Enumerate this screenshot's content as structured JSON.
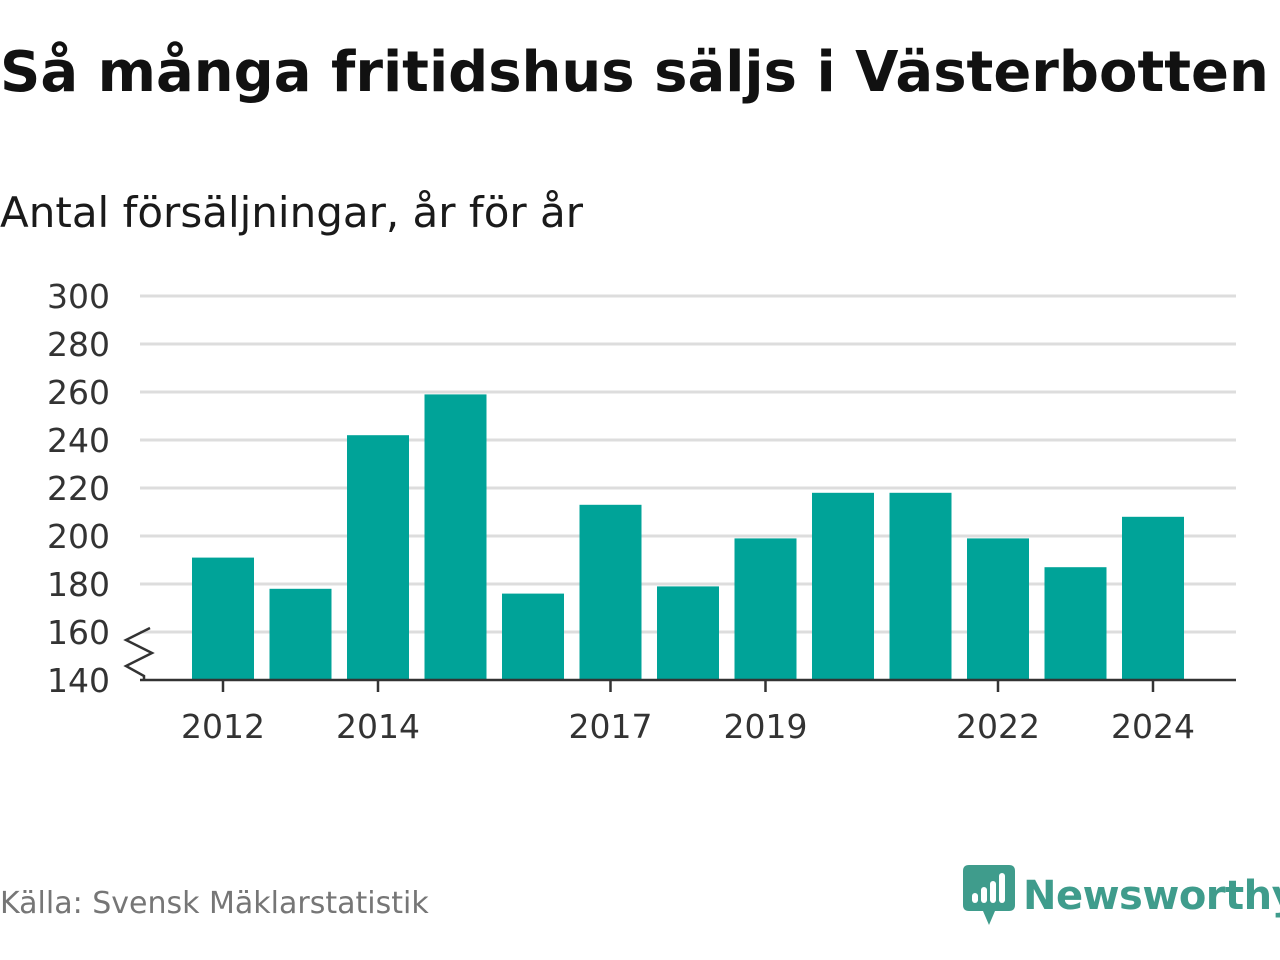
{
  "chart_data": {
    "type": "bar",
    "title": "Så många fritidshus säljs i Västerbotten",
    "subtitle": "Antal försäljningar, år för år",
    "categories": [
      "2012",
      "2013",
      "2014",
      "2015",
      "2016",
      "2017",
      "2018",
      "2019",
      "2020",
      "2021",
      "2022",
      "2023",
      "2024"
    ],
    "values": [
      191,
      178,
      242,
      259,
      176,
      213,
      179,
      199,
      218,
      218,
      199,
      187,
      208
    ],
    "x_tick_labels": [
      "2012",
      "2014",
      "2017",
      "2019",
      "2022",
      "2024"
    ],
    "y_ticks": [
      140,
      160,
      180,
      200,
      220,
      240,
      260,
      280,
      300
    ],
    "ylim": [
      140,
      300
    ],
    "xlabel": "",
    "ylabel": "",
    "axis_break": true,
    "grid": true,
    "legend": "none",
    "colors": {
      "bar": "#00a398",
      "grid": "#dddddd",
      "axis": "#333333",
      "tick_label": "#333333"
    }
  },
  "footer": {
    "source": "Källa: Svensk Mäklarstatistik",
    "brand": "Newsworthy",
    "brand_icon": "newsworthy-logo-icon",
    "brand_color": "#3f9c8c"
  }
}
